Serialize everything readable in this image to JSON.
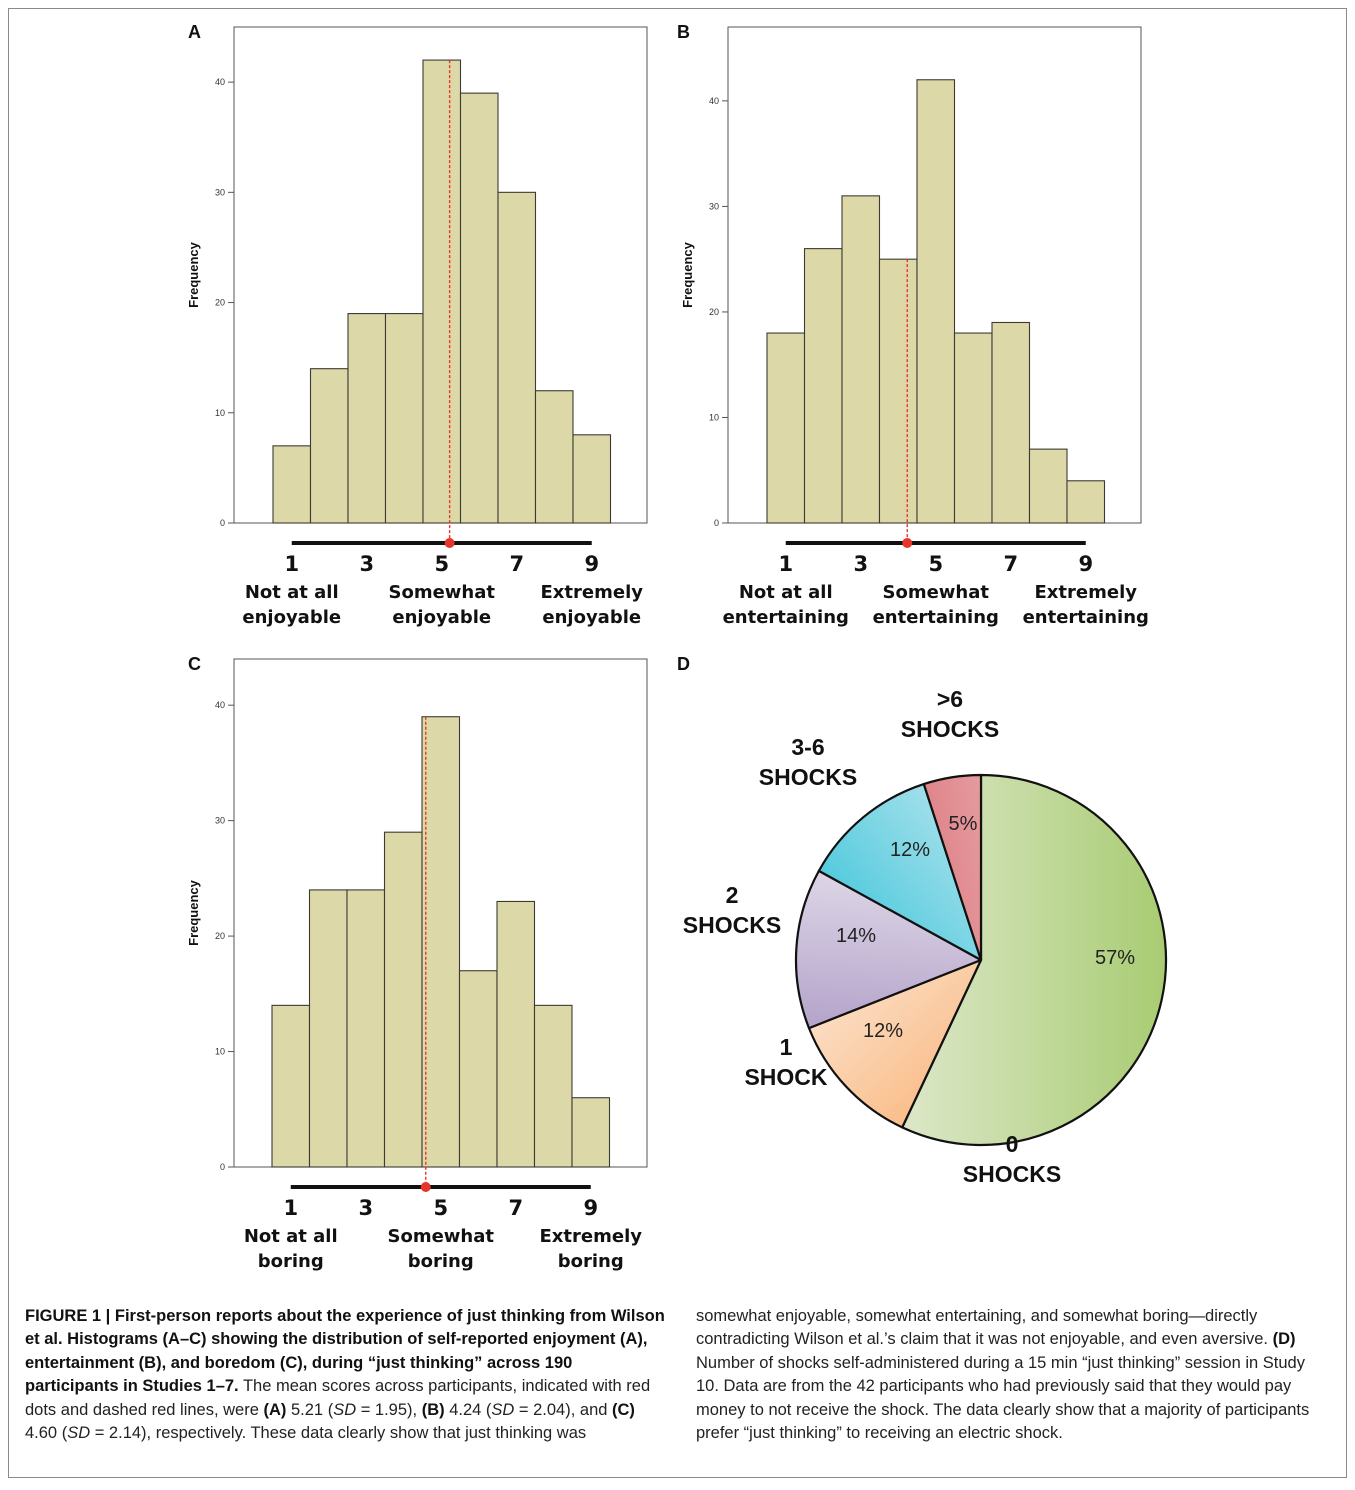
{
  "figure": {
    "panels": [
      "A",
      "B",
      "C",
      "D"
    ]
  },
  "colors": {
    "bar_fill": "#dcd8a8",
    "bar_stroke": "#3b3b33",
    "mean_marker": "#e8352b",
    "scale_line": "#111111"
  },
  "chart_data": [
    {
      "panel": "A",
      "type": "bar",
      "ylabel": "Frequency",
      "xlabel": "",
      "ylim": [
        0,
        45
      ],
      "yticks": [
        0,
        10,
        20,
        30,
        40
      ],
      "categories": [
        1,
        2,
        3,
        4,
        5,
        6,
        7,
        8,
        9
      ],
      "values": [
        7,
        14,
        19,
        19,
        42,
        39,
        30,
        12,
        8
      ],
      "mean": 5.21,
      "scale_ticks": [
        "1",
        "3",
        "5",
        "7",
        "9"
      ],
      "anchors": [
        {
          "line1": "Not at all",
          "line2": "enjoyable"
        },
        {
          "line1": "Somewhat",
          "line2": "enjoyable"
        },
        {
          "line1": "Extremely",
          "line2": "enjoyable"
        }
      ]
    },
    {
      "panel": "B",
      "type": "bar",
      "ylabel": "Frequency",
      "xlabel": "",
      "ylim": [
        0,
        47
      ],
      "yticks": [
        0,
        10,
        20,
        30,
        40
      ],
      "categories": [
        1,
        2,
        3,
        4,
        5,
        6,
        7,
        8,
        9
      ],
      "values": [
        18,
        26,
        31,
        25,
        42,
        18,
        19,
        7,
        4
      ],
      "mean": 4.24,
      "scale_ticks": [
        "1",
        "3",
        "5",
        "7",
        "9"
      ],
      "anchors": [
        {
          "line1": "Not at all",
          "line2": "entertaining"
        },
        {
          "line1": "Somewhat",
          "line2": "entertaining"
        },
        {
          "line1": "Extremely",
          "line2": "entertaining"
        }
      ]
    },
    {
      "panel": "C",
      "type": "bar",
      "ylabel": "Frequency",
      "xlabel": "",
      "ylim": [
        0,
        44
      ],
      "yticks": [
        0,
        10,
        20,
        30,
        40
      ],
      "categories": [
        1,
        2,
        3,
        4,
        5,
        6,
        7,
        8,
        9
      ],
      "values": [
        14,
        24,
        24,
        29,
        39,
        17,
        23,
        14,
        6
      ],
      "mean": 4.6,
      "scale_ticks": [
        "1",
        "3",
        "5",
        "7",
        "9"
      ],
      "anchors": [
        {
          "line1": "Not at all",
          "line2": "boring"
        },
        {
          "line1": "Somewhat",
          "line2": "boring"
        },
        {
          "line1": "Extremely",
          "line2": "boring"
        }
      ]
    },
    {
      "panel": "D",
      "type": "pie",
      "slices": [
        {
          "line1": "0",
          "line2": "SHOCKS",
          "value": 57,
          "label": "57%",
          "color_light": "#f2f2ec",
          "color_dark": "#a8cc72"
        },
        {
          "line1": "1",
          "line2": "SHOCK",
          "value": 12,
          "label": "12%",
          "color_light": "#fdf2ea",
          "color_dark": "#f8a862"
        },
        {
          "line1": "2",
          "line2": "SHOCKS",
          "value": 14,
          "label": "14%",
          "color_light": "#f4f2f6",
          "color_dark": "#9d87ba"
        },
        {
          "line1": "3-6",
          "line2": "SHOCKS",
          "value": 12,
          "label": "12%",
          "color_light": "#d9eef2",
          "color_dark": "#1cbcd6"
        },
        {
          "line1": ">6",
          "line2": "SHOCKS",
          "value": 5,
          "label": "5%",
          "color_light": "#f4d0d0",
          "color_dark": "#d0505a"
        }
      ]
    }
  ],
  "caption": {
    "left": [
      {
        "b": "FIGURE 1 | First-person reports about the experience of just thinking from Wilson et al. Histograms (A–C) showing the distribution of self-reported enjoyment (A), entertainment (B), and boredom (C), during “just thinking” across 190 participants in Studies 1–7."
      },
      {
        "t": " The mean scores across participants, indicated with red dots and dashed red lines, were "
      },
      {
        "b": "(A)"
      },
      {
        "t": " 5.21 ("
      },
      {
        "i": "SD"
      },
      {
        "t": " = 1.95), "
      },
      {
        "b": "(B)"
      },
      {
        "t": " 4.24 ("
      },
      {
        "i": "SD"
      },
      {
        "t": " = 2.04), and "
      },
      {
        "b": "(C)"
      },
      {
        "t": " 4.60 ("
      },
      {
        "i": "SD"
      },
      {
        "t": " = 2.14), respectively. These data clearly show that just thinking was"
      }
    ],
    "right": [
      {
        "t": "somewhat enjoyable, somewhat entertaining, and somewhat boring—directly contradicting Wilson et al.’s claim that it was not enjoyable, and even aversive. "
      },
      {
        "b": "(D)"
      },
      {
        "t": " Number of shocks self-administered during a 15 min “just thinking” session in Study 10. Data are from the 42 participants who had previously said that they would pay money to not receive the shock. The data clearly show that a majority of participants prefer “just thinking” to receiving an electric shock."
      }
    ]
  }
}
